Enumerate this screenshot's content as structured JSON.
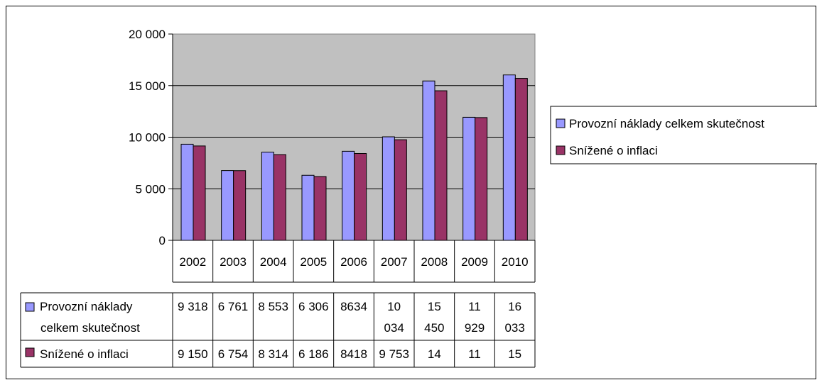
{
  "chart_data": {
    "type": "bar",
    "categories": [
      "2002",
      "2003",
      "2004",
      "2005",
      "2006",
      "2007",
      "2008",
      "2009",
      "2010"
    ],
    "series": [
      {
        "name": "Provozní náklady celkem skutečnost",
        "table_label_lines": [
          "Provozní náklady",
          "celkem skutečnost"
        ],
        "legend_label": "Provozní náklady celkem skutečnost",
        "color": "#9999ff",
        "values": [
          9318,
          6761,
          8553,
          6306,
          8634,
          10034,
          15450,
          11929,
          16033
        ],
        "table_cells": [
          [
            "9 318"
          ],
          [
            "6 761"
          ],
          [
            "8 553"
          ],
          [
            "6 306"
          ],
          [
            "8634"
          ],
          [
            "10",
            "034"
          ],
          [
            "15",
            "450"
          ],
          [
            "11",
            "929"
          ],
          [
            "16",
            "033"
          ]
        ]
      },
      {
        "name": "Snížené o inflaci",
        "table_label_lines": [
          "Snížené o inflaci"
        ],
        "legend_label": "Snížené o inflaci",
        "color": "#993366",
        "values": [
          9150,
          6754,
          8314,
          6186,
          8418,
          9753,
          14500,
          11900,
          15700
        ],
        "table_cells": [
          [
            "9 150"
          ],
          [
            "6 754"
          ],
          [
            "8 314"
          ],
          [
            "6 186"
          ],
          [
            "8418"
          ],
          [
            "9 753"
          ],
          [
            "14"
          ],
          [
            "11"
          ],
          [
            "15"
          ]
        ]
      }
    ],
    "yticks": [
      0,
      5000,
      10000,
      15000,
      20000
    ],
    "ytick_labels": [
      "0",
      "5 000",
      "10 000",
      "15 000",
      "20 000"
    ],
    "ylim": [
      0,
      20000
    ],
    "grid": true,
    "plot_background": "#c0c0c0",
    "legend_position": "right",
    "data_table": true
  }
}
